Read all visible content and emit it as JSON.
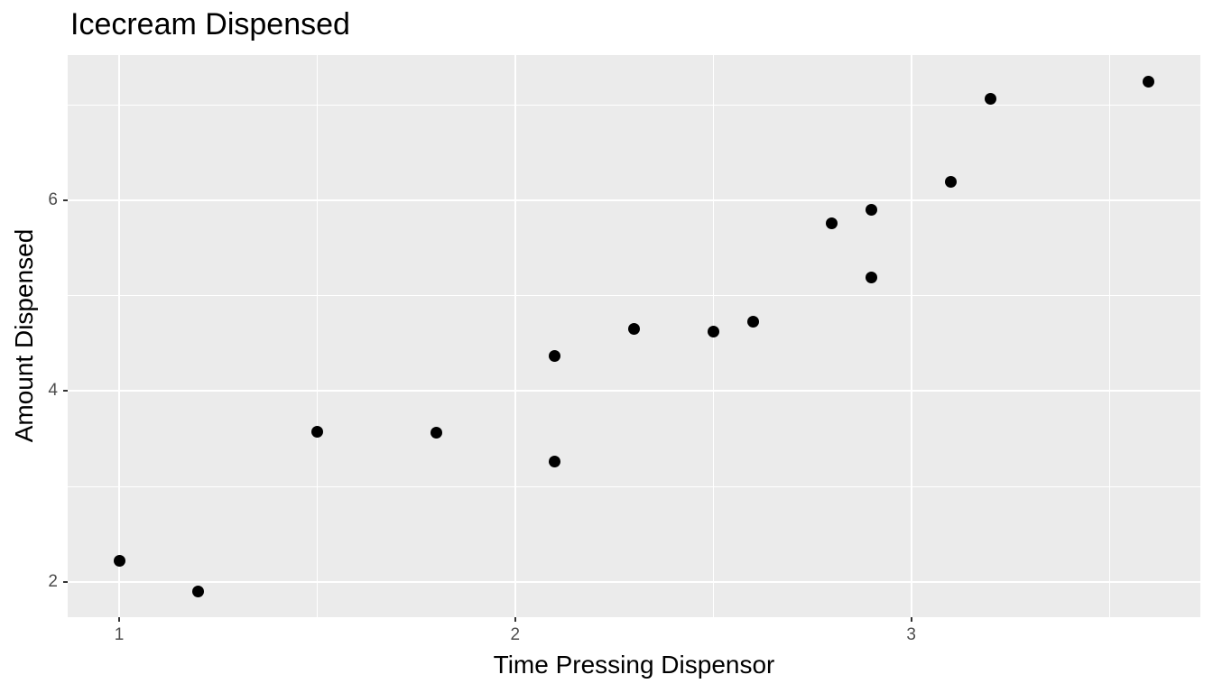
{
  "chart_data": {
    "type": "scatter",
    "title": "Icecream Dispensed",
    "xlabel": "Time Pressing Dispensor",
    "ylabel": "Amount Dispensed",
    "xlim": [
      0.87,
      3.73
    ],
    "ylim": [
      1.63,
      7.52
    ],
    "x_ticks": [
      1,
      2,
      3
    ],
    "y_ticks": [
      2,
      4,
      6
    ],
    "x_minor_gridlines": [
      1.5,
      2.5,
      3.5
    ],
    "y_minor_gridlines": [
      3,
      5,
      7
    ],
    "grid": true,
    "legend": "none",
    "points": [
      {
        "x": 1.0,
        "y": 2.22
      },
      {
        "x": 1.2,
        "y": 1.9
      },
      {
        "x": 1.5,
        "y": 3.57
      },
      {
        "x": 1.8,
        "y": 3.56
      },
      {
        "x": 2.1,
        "y": 4.37
      },
      {
        "x": 2.1,
        "y": 3.26
      },
      {
        "x": 2.3,
        "y": 4.65
      },
      {
        "x": 2.5,
        "y": 4.62
      },
      {
        "x": 2.6,
        "y": 4.73
      },
      {
        "x": 2.8,
        "y": 5.76
      },
      {
        "x": 2.9,
        "y": 5.9
      },
      {
        "x": 2.9,
        "y": 5.19
      },
      {
        "x": 3.1,
        "y": 6.19
      },
      {
        "x": 3.2,
        "y": 7.06
      },
      {
        "x": 3.6,
        "y": 7.24
      }
    ],
    "colors": {
      "page_bg": "#FFFFFF",
      "panel_bg": "#EBEBEB",
      "grid": "#FFFFFF",
      "point": "#000000",
      "tick_label": "#4D4D4D",
      "tick_mark": "#333333",
      "title": "#000000"
    }
  }
}
